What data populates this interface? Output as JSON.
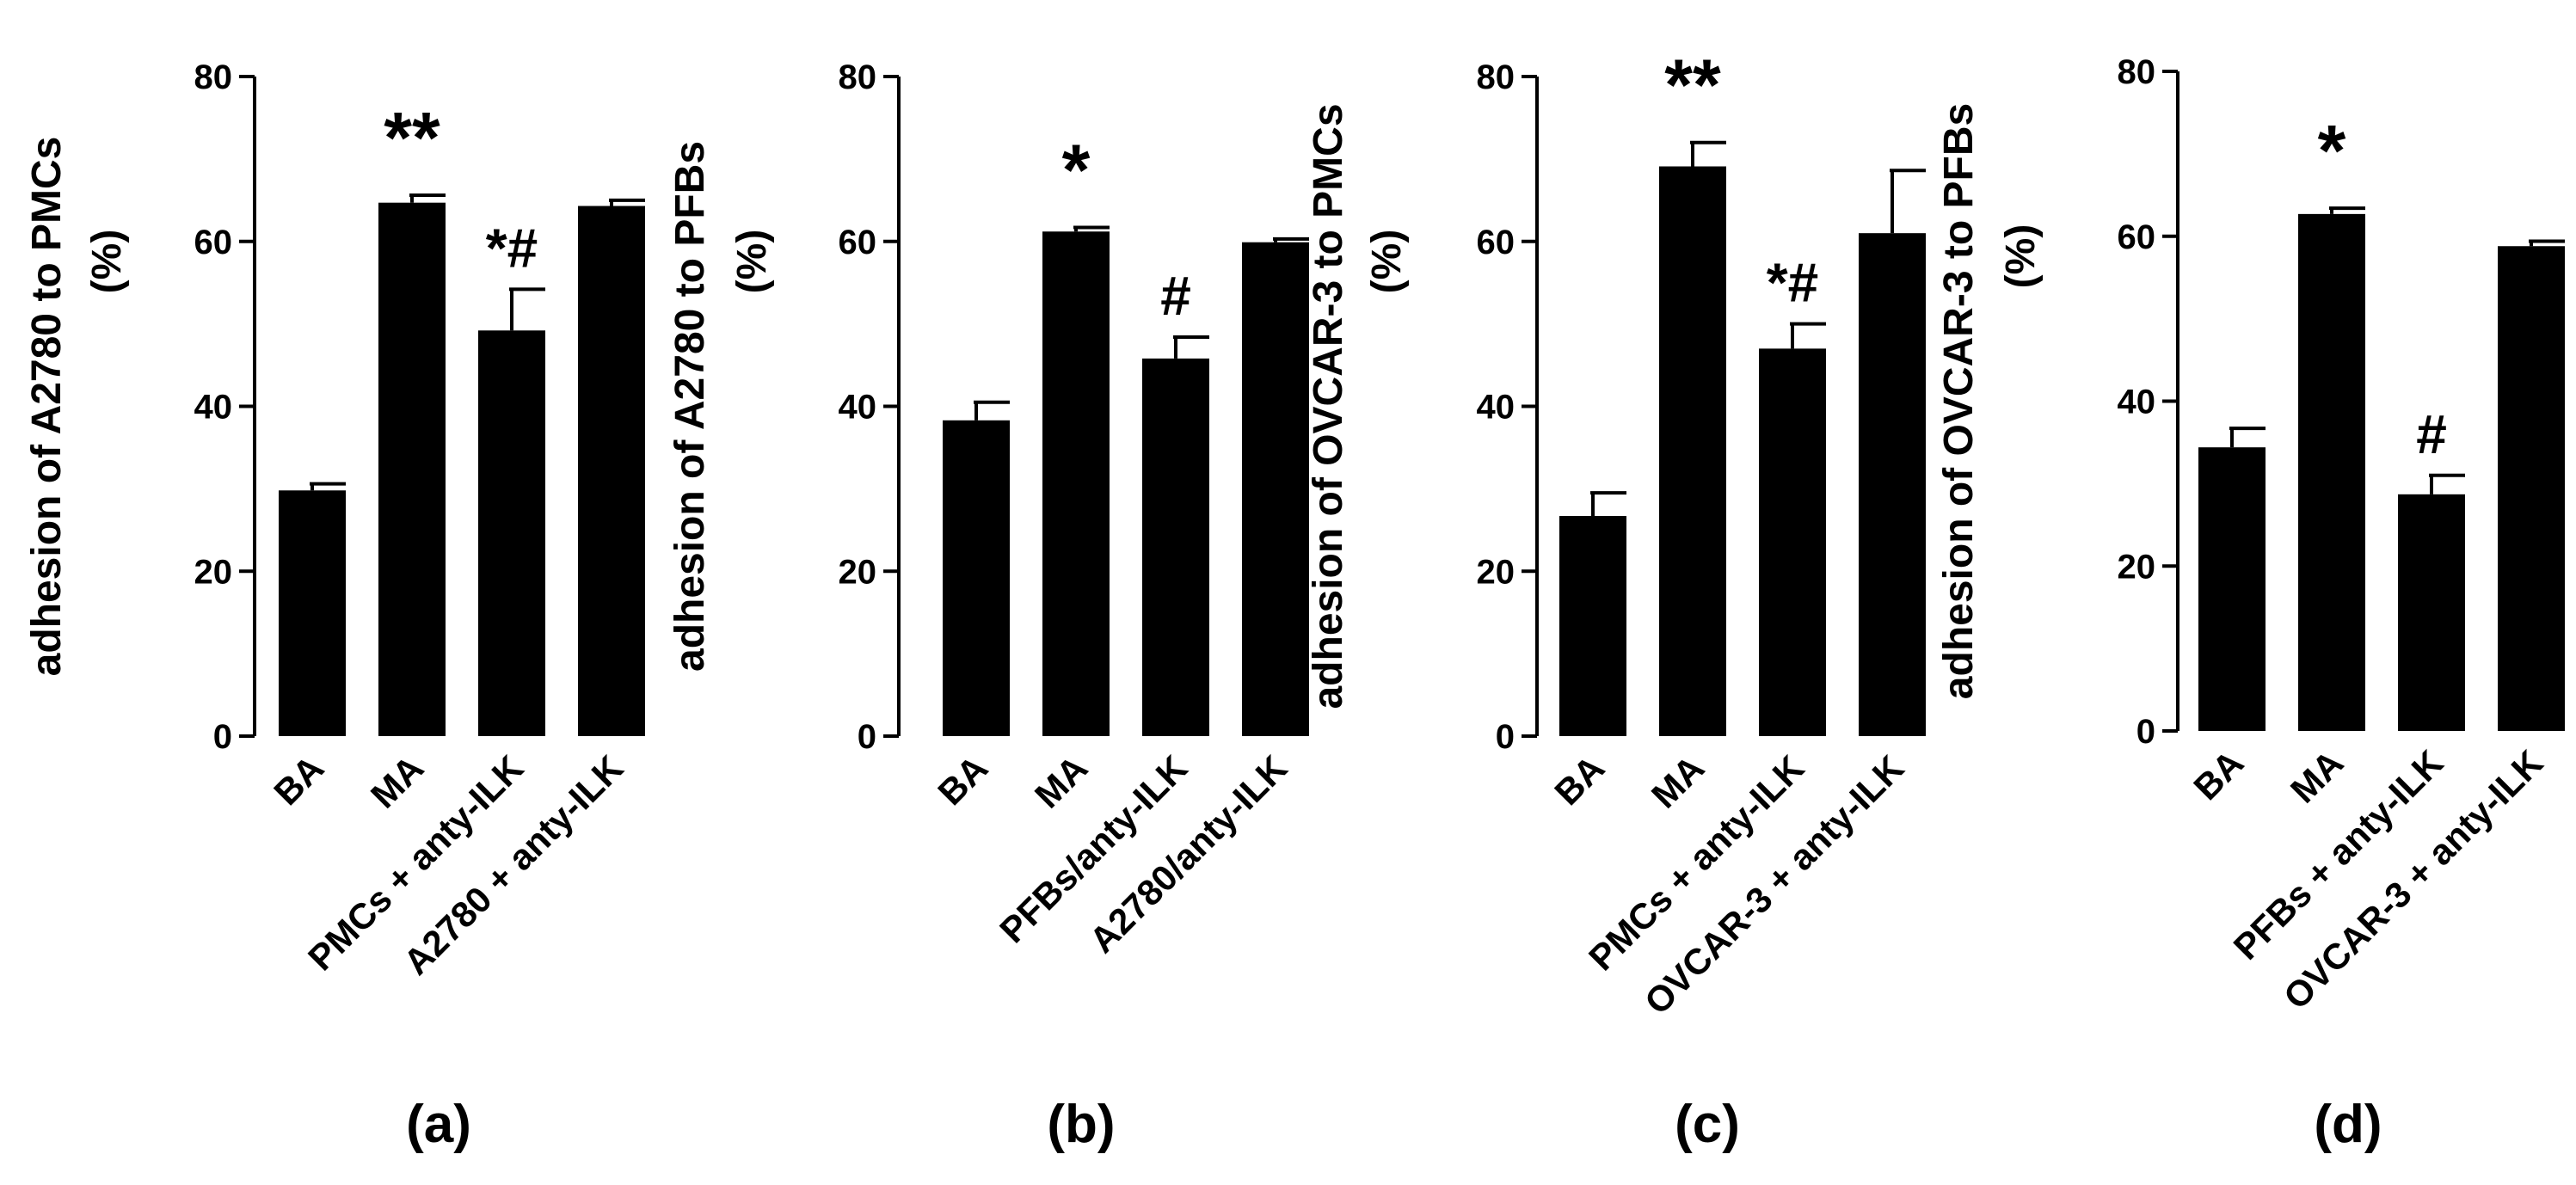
{
  "chart_data": [
    {
      "type": "bar",
      "panel_label": "(a)",
      "ylabel_line1": "adhesion of A2780 to PMCs",
      "ylabel_line2": "(%)",
      "ylim": [
        0,
        80
      ],
      "yticks": [
        "0",
        "20",
        "40",
        "60",
        "80"
      ],
      "categories": [
        "BA",
        "MA",
        "PMCs + anty-ILK",
        "A2780 + anty-ILK"
      ],
      "values": [
        29.8,
        64.7,
        49.2,
        64.3
      ],
      "errors": [
        0.8,
        0.9,
        5.0,
        0.7
      ],
      "annotations": [
        "",
        "**",
        "*#",
        ""
      ]
    },
    {
      "type": "bar",
      "panel_label": "(b)",
      "ylabel_line1": "adhesion of A2780 to PFBs",
      "ylabel_line2": "(%)",
      "ylim": [
        0,
        80
      ],
      "yticks": [
        "0",
        "20",
        "40",
        "60",
        "80"
      ],
      "categories": [
        "BA",
        "MA",
        "PFBs/anty-ILK",
        "A2780/anty-ILK"
      ],
      "values": [
        38.3,
        61.2,
        45.8,
        59.9
      ],
      "errors": [
        2.2,
        0.5,
        2.6,
        0.4
      ],
      "annotations": [
        "",
        "*",
        "#",
        ""
      ]
    },
    {
      "type": "bar",
      "panel_label": "(c)",
      "ylabel_line1": "adhesion of OVCAR-3 to PMCs",
      "ylabel_line2": "(%)",
      "ylim": [
        0,
        80
      ],
      "yticks": [
        "0",
        "20",
        "40",
        "60",
        "80"
      ],
      "categories": [
        "BA",
        "MA",
        "PMCs + anty-ILK",
        "OVCAR-3 + anty-ILK"
      ],
      "values": [
        26.7,
        69.1,
        47.0,
        61.0
      ],
      "errors": [
        2.8,
        2.9,
        3.0,
        7.6
      ],
      "annotations": [
        "",
        "**",
        "*#",
        ""
      ]
    },
    {
      "type": "bar",
      "panel_label": "(d)",
      "ylabel_line1": "adhesion of OVCAR-3 to PFBs",
      "ylabel_line2": "(%)",
      "ylim": [
        0,
        80
      ],
      "yticks": [
        "0",
        "20",
        "40",
        "60",
        "80"
      ],
      "categories": [
        "BA",
        "MA",
        "PFBs + anty-ILK",
        "OVCAR-3 + anty-ILK"
      ],
      "values": [
        34.4,
        62.7,
        28.7,
        58.8
      ],
      "errors": [
        2.3,
        0.7,
        2.3,
        0.6
      ],
      "annotations": [
        "",
        "*",
        "#",
        ""
      ]
    }
  ]
}
